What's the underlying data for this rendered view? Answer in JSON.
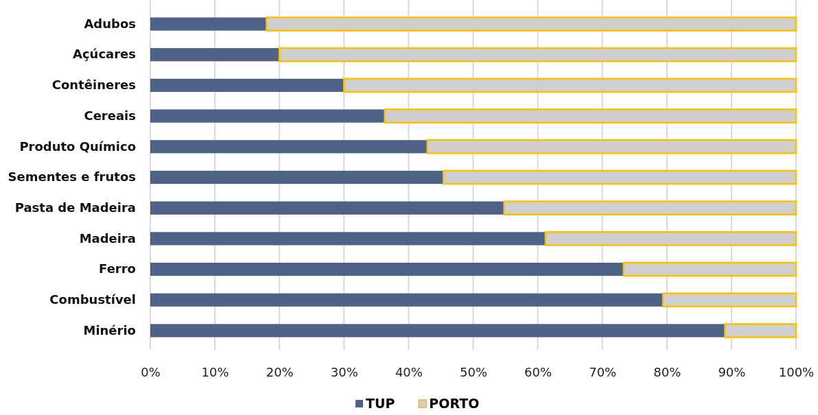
{
  "chart_data": {
    "type": "bar",
    "orientation": "horizontal",
    "stacked": true,
    "categories": [
      "Adubos",
      "Açúcares",
      "Contêineres",
      "Cereais",
      "Produto Químico",
      "Sementes e frutos",
      "Pasta de Madeira",
      "Madeira",
      "Ferro",
      "Combustível",
      "Minério"
    ],
    "series": [
      {
        "name": "TUP",
        "color": "#4f6389",
        "values": [
          18,
          20,
          30,
          36.3,
          42.9,
          45.4,
          54.8,
          61.2,
          73.3,
          79.4,
          89
        ]
      },
      {
        "name": "PORTO",
        "color": "#d0cece",
        "values": [
          82,
          80,
          70,
          63.7,
          57.1,
          54.6,
          45.2,
          38.8,
          26.7,
          20.6,
          11
        ]
      }
    ],
    "xlim": [
      0,
      100
    ],
    "xticks": [
      {
        "value": 0,
        "label": "0%"
      },
      {
        "value": 10,
        "label": "10%"
      },
      {
        "value": 20,
        "label": "20%"
      },
      {
        "value": 30,
        "label": "30%"
      },
      {
        "value": 40,
        "label": "40%"
      },
      {
        "value": 50,
        "label": "50%"
      },
      {
        "value": 60,
        "label": "60%"
      },
      {
        "value": 70,
        "label": "70%"
      },
      {
        "value": 80,
        "label": "80%"
      },
      {
        "value": 90,
        "label": "90%"
      },
      {
        "value": 100,
        "label": "100%"
      }
    ],
    "grid": "x",
    "legend": "bottom"
  }
}
